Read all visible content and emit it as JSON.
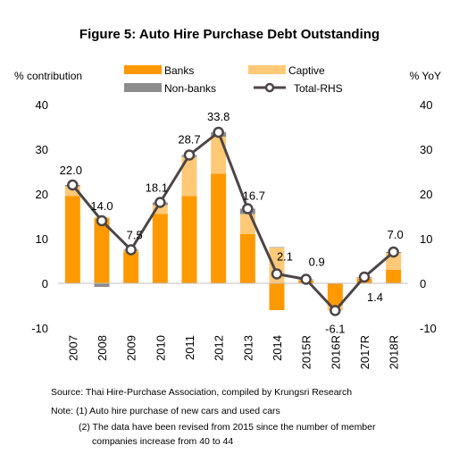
{
  "chart_data": {
    "type": "bar",
    "title": "Figure 5: Auto Hire Purchase Debt Outstanding",
    "left_axis_label": "% contribution",
    "right_axis_label": "% YoY",
    "categories": [
      "2007",
      "2008",
      "2009",
      "2010",
      "2011",
      "2012",
      "2013",
      "2014",
      "2015R",
      "2016R",
      "2017R",
      "2018R"
    ],
    "ylim": [
      -10,
      40
    ],
    "yticks": [
      -10,
      0,
      10,
      20,
      30,
      40
    ],
    "stacked": true,
    "series": [
      {
        "name": "Banks",
        "kind": "bar",
        "color": "#ff9900",
        "values": [
          19.5,
          14.5,
          7.0,
          15.5,
          19.5,
          24.5,
          11.0,
          -6.0,
          0.6,
          -5.0,
          1.0,
          3.0
        ]
      },
      {
        "name": "Captive",
        "kind": "bar",
        "color": "#ffc978",
        "values": [
          2.2,
          0.3,
          0.3,
          2.0,
          8.8,
          8.3,
          4.5,
          8.0,
          0.2,
          -1.1,
          0.3,
          3.8
        ]
      },
      {
        "name": "Non-banks",
        "kind": "bar",
        "color": "#8c8c8c",
        "values": [
          0.3,
          -0.8,
          0.2,
          0.6,
          0.4,
          1.0,
          1.2,
          0.1,
          0.1,
          0.1,
          0.1,
          0.2
        ]
      },
      {
        "name": "Total-RHS",
        "kind": "line",
        "color": "#4d4546",
        "values": [
          22.0,
          14.0,
          7.5,
          18.1,
          28.7,
          33.8,
          16.7,
          2.1,
          0.9,
          -6.1,
          1.4,
          7.0
        ],
        "labels": [
          "22.0",
          "14.0",
          "7.5",
          "18.1",
          "28.7",
          "33.8",
          "16.7",
          "2.1",
          "0.9",
          "-6.1",
          "1.4",
          "7.0"
        ]
      }
    ],
    "legend_position": "top"
  },
  "notes": {
    "source": "Source: Thai Hire-Purchase Association, compiled by Krungsri Research",
    "note1": "Note: (1) Auto hire purchase of new cars and used cars",
    "note2": "(2) The data have been revised from 2015 since the number of member",
    "note3": "companies increase from 40 to 44"
  }
}
